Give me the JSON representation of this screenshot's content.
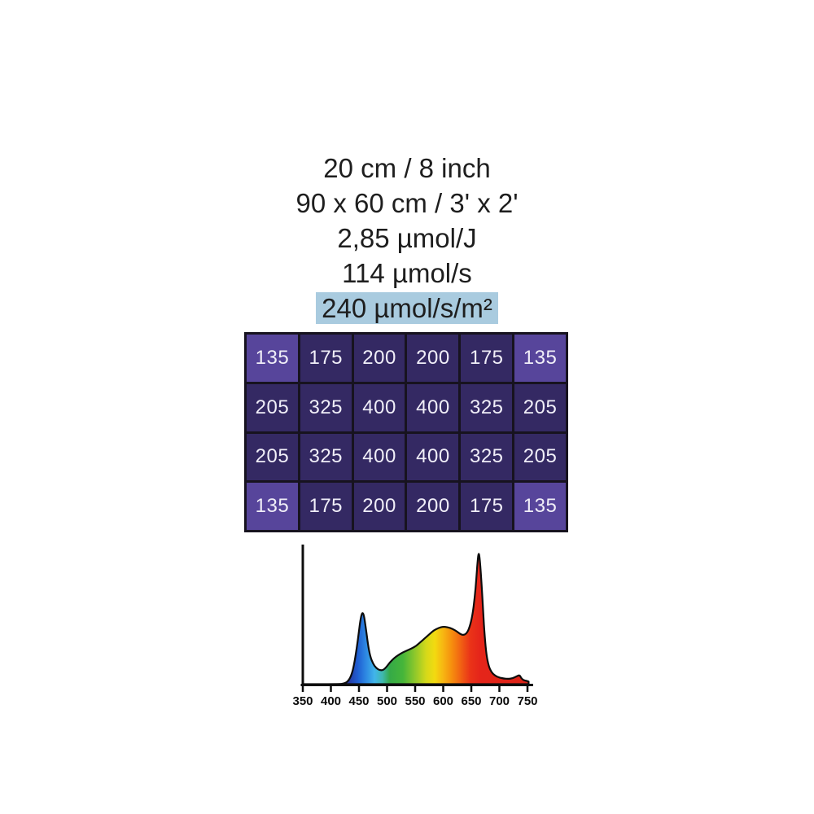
{
  "header": {
    "text_color": "#1e1e1e",
    "highlight_color": "#a9cbdf",
    "lines": [
      {
        "text": "20 cm / 8 inch",
        "highlighted": false
      },
      {
        "text": "90 x 60 cm / 3' x 2'",
        "highlighted": false
      },
      {
        "text": "2,85 µmol/J",
        "highlighted": false
      },
      {
        "text": "114 µmol/s",
        "highlighted": false
      },
      {
        "text": "240 µmol/s/m²",
        "highlighted": true
      }
    ]
  },
  "chart_data": [
    {
      "type": "heatmap",
      "name": "ppfd-map",
      "rows": [
        [
          135,
          175,
          200,
          200,
          175,
          135
        ],
        [
          205,
          325,
          400,
          400,
          325,
          205
        ],
        [
          205,
          325,
          400,
          400,
          325,
          205
        ],
        [
          135,
          175,
          200,
          200,
          175,
          135
        ]
      ],
      "colors": {
        "corner_cell": "#57459b",
        "cell": "#342963",
        "border": "#17131f",
        "value_text": "#f0eef8"
      }
    },
    {
      "type": "area",
      "name": "light-spectrum",
      "x_range": [
        350,
        750
      ],
      "y_range": [
        0,
        1
      ],
      "x_ticks": [
        350,
        400,
        450,
        500,
        550,
        600,
        650,
        700,
        750
      ],
      "axis_color": "#0d0d0d",
      "outline_color": "#0d0d0d",
      "tick_label_color": "#0b0b0b",
      "grid": false,
      "points": [
        [
          350,
          0
        ],
        [
          415,
          0
        ],
        [
          424,
          0.005
        ],
        [
          430,
          0.02
        ],
        [
          436,
          0.06
        ],
        [
          441,
          0.14
        ],
        [
          446,
          0.27
        ],
        [
          450,
          0.4
        ],
        [
          453,
          0.5
        ],
        [
          456,
          0.545
        ],
        [
          459,
          0.52
        ],
        [
          462,
          0.43
        ],
        [
          466,
          0.3
        ],
        [
          470,
          0.21
        ],
        [
          475,
          0.155
        ],
        [
          481,
          0.12
        ],
        [
          487,
          0.105
        ],
        [
          493,
          0.105
        ],
        [
          499,
          0.13
        ],
        [
          505,
          0.165
        ],
        [
          512,
          0.195
        ],
        [
          520,
          0.22
        ],
        [
          528,
          0.24
        ],
        [
          536,
          0.255
        ],
        [
          544,
          0.27
        ],
        [
          552,
          0.29
        ],
        [
          560,
          0.32
        ],
        [
          568,
          0.35
        ],
        [
          576,
          0.38
        ],
        [
          584,
          0.41
        ],
        [
          592,
          0.425
        ],
        [
          600,
          0.435
        ],
        [
          608,
          0.43
        ],
        [
          616,
          0.42
        ],
        [
          624,
          0.4
        ],
        [
          630,
          0.38
        ],
        [
          636,
          0.37
        ],
        [
          642,
          0.385
        ],
        [
          647,
          0.43
        ],
        [
          652,
          0.52
        ],
        [
          656,
          0.65
        ],
        [
          659,
          0.8
        ],
        [
          661,
          0.92
        ],
        [
          663,
          1.0
        ],
        [
          665,
          0.95
        ],
        [
          668,
          0.78
        ],
        [
          671,
          0.55
        ],
        [
          674,
          0.35
        ],
        [
          677,
          0.22
        ],
        [
          681,
          0.135
        ],
        [
          686,
          0.09
        ],
        [
          692,
          0.065
        ],
        [
          700,
          0.05
        ],
        [
          708,
          0.042
        ],
        [
          716,
          0.04
        ],
        [
          724,
          0.045
        ],
        [
          730,
          0.058
        ],
        [
          736,
          0.07
        ],
        [
          739,
          0.045
        ],
        [
          743,
          0.03
        ],
        [
          748,
          0.026
        ],
        [
          752,
          0.02
        ]
      ],
      "gradient_stops": [
        {
          "nm": 425,
          "color": "#2a2a8e"
        },
        {
          "nm": 448,
          "color": "#1f5fd2"
        },
        {
          "nm": 462,
          "color": "#2d87e2"
        },
        {
          "nm": 478,
          "color": "#41b5ea"
        },
        {
          "nm": 492,
          "color": "#3fb8ad"
        },
        {
          "nm": 505,
          "color": "#35aa47"
        },
        {
          "nm": 528,
          "color": "#45b53a"
        },
        {
          "nm": 550,
          "color": "#8fc82b"
        },
        {
          "nm": 570,
          "color": "#d6d91a"
        },
        {
          "nm": 585,
          "color": "#f2da10"
        },
        {
          "nm": 600,
          "color": "#f7b512"
        },
        {
          "nm": 615,
          "color": "#f68f0e"
        },
        {
          "nm": 632,
          "color": "#f15f13"
        },
        {
          "nm": 648,
          "color": "#ea3318"
        },
        {
          "nm": 665,
          "color": "#e5251a"
        },
        {
          "nm": 750,
          "color": "#dc2418"
        }
      ]
    }
  ]
}
